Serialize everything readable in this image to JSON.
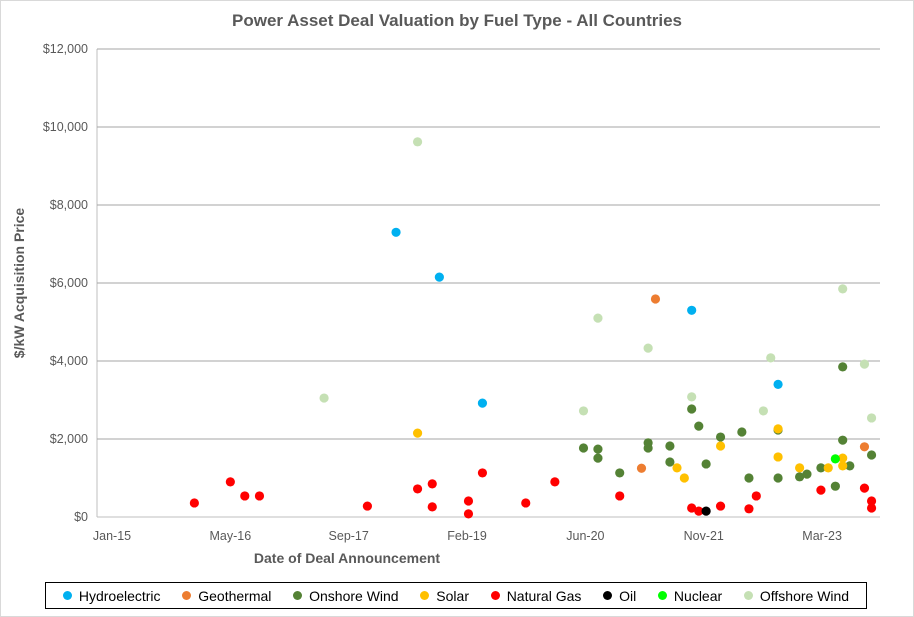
{
  "chart_data": {
    "type": "scatter",
    "title": "Power Asset Deal Valuation by Fuel Type - All Countries",
    "xlabel": "Date of Deal Announcement",
    "ylabel": "$/kW Acquisition Price",
    "xlim": [
      "2014-12-01",
      "2023-11-20"
    ],
    "ylim": [
      0,
      12000
    ],
    "x_ticks": [
      {
        "date": "2015-01-01",
        "label": "Jan-15"
      },
      {
        "date": "2016-05-15",
        "label": "May-16"
      },
      {
        "date": "2017-09-27",
        "label": "Sep-17"
      },
      {
        "date": "2019-02-09",
        "label": "Feb-19"
      },
      {
        "date": "2020-06-23",
        "label": "Jun-20"
      },
      {
        "date": "2021-11-05",
        "label": "Nov-21"
      },
      {
        "date": "2023-03-20",
        "label": "Mar-23"
      }
    ],
    "y_ticks": [
      {
        "value": 0,
        "label": "$0"
      },
      {
        "value": 2000,
        "label": "$2,000"
      },
      {
        "value": 4000,
        "label": "$4,000"
      },
      {
        "value": 6000,
        "label": "$6,000"
      },
      {
        "value": 8000,
        "label": "$8,000"
      },
      {
        "value": 10000,
        "label": "$10,000"
      },
      {
        "value": 12000,
        "label": "$12,000"
      }
    ],
    "grid": "horizontal",
    "legend_position": "bottom",
    "series": [
      {
        "name": "Hydroelectric",
        "color": "#00B0F0",
        "points": [
          [
            "2018-04",
            7300
          ],
          [
            "2018-10",
            6150
          ],
          [
            "2019-04",
            2920
          ],
          [
            "2021-09",
            5300
          ],
          [
            "2022-09",
            3400
          ]
        ]
      },
      {
        "name": "Geothermal",
        "color": "#ED7D31",
        "points": [
          [
            "2021-04",
            5590
          ],
          [
            "2021-02",
            1250
          ],
          [
            "2023-09",
            1800
          ]
        ]
      },
      {
        "name": "Onshore Wind",
        "color": "#548235",
        "points": [
          [
            "2020-06",
            1770
          ],
          [
            "2020-08",
            1740
          ],
          [
            "2020-08",
            1510
          ],
          [
            "2020-11",
            1130
          ],
          [
            "2021-03",
            1900
          ],
          [
            "2021-03",
            1770
          ],
          [
            "2021-06",
            1820
          ],
          [
            "2021-06",
            1410
          ],
          [
            "2021-09",
            2770
          ],
          [
            "2021-10",
            2330
          ],
          [
            "2021-11",
            1360
          ],
          [
            "2022-01",
            2050
          ],
          [
            "2022-04",
            2180
          ],
          [
            "2022-05",
            1000
          ],
          [
            "2022-09",
            2230
          ],
          [
            "2022-09",
            1000
          ],
          [
            "2022-12",
            1030
          ],
          [
            "2023-01",
            1100
          ],
          [
            "2023-03",
            1260
          ],
          [
            "2023-05",
            790
          ],
          [
            "2023-06",
            3850
          ],
          [
            "2023-06",
            1970
          ],
          [
            "2023-07",
            1310
          ],
          [
            "2023-10",
            1590
          ]
        ]
      },
      {
        "name": "Solar",
        "color": "#FFC000",
        "points": [
          [
            "2018-07",
            2150
          ],
          [
            "2021-07",
            1260
          ],
          [
            "2021-08",
            1000
          ],
          [
            "2022-01",
            1820
          ],
          [
            "2022-09",
            2260
          ],
          [
            "2022-09",
            1540
          ],
          [
            "2022-12",
            1260
          ],
          [
            "2023-04",
            1260
          ],
          [
            "2023-06",
            1510
          ],
          [
            "2023-06",
            1310
          ]
        ]
      },
      {
        "name": "Natural Gas",
        "color": "#FF0000",
        "points": [
          [
            "2015-12",
            360
          ],
          [
            "2016-05",
            900
          ],
          [
            "2016-07",
            540
          ],
          [
            "2016-09",
            540
          ],
          [
            "2017-12",
            280
          ],
          [
            "2018-07",
            720
          ],
          [
            "2018-09",
            850
          ],
          [
            "2018-09",
            260
          ],
          [
            "2019-02",
            410
          ],
          [
            "2019-02",
            80
          ],
          [
            "2019-04",
            1130
          ],
          [
            "2019-10",
            360
          ],
          [
            "2020-02",
            900
          ],
          [
            "2020-11",
            540
          ],
          [
            "2021-09",
            230
          ],
          [
            "2021-10",
            150
          ],
          [
            "2022-01",
            280
          ],
          [
            "2022-05",
            210
          ],
          [
            "2022-06",
            540
          ],
          [
            "2023-03",
            690
          ],
          [
            "2023-09",
            740
          ],
          [
            "2023-10",
            410
          ],
          [
            "2023-10",
            230
          ]
        ]
      },
      {
        "name": "Oil",
        "color": "#000000",
        "points": [
          [
            "2021-11",
            150
          ]
        ]
      },
      {
        "name": "Nuclear",
        "color": "#00FF00",
        "points": [
          [
            "2023-05",
            1490
          ]
        ]
      },
      {
        "name": "Offshore Wind",
        "color": "#C5E0B4",
        "points": [
          [
            "2017-06",
            3050
          ],
          [
            "2018-07",
            9620
          ],
          [
            "2020-06",
            2720
          ],
          [
            "2020-08",
            5100
          ],
          [
            "2021-03",
            4330
          ],
          [
            "2021-09",
            3080
          ],
          [
            "2022-07",
            2720
          ],
          [
            "2022-08",
            4080
          ],
          [
            "2023-06",
            5850
          ],
          [
            "2023-09",
            3920
          ],
          [
            "2023-10",
            2540
          ]
        ]
      }
    ]
  }
}
